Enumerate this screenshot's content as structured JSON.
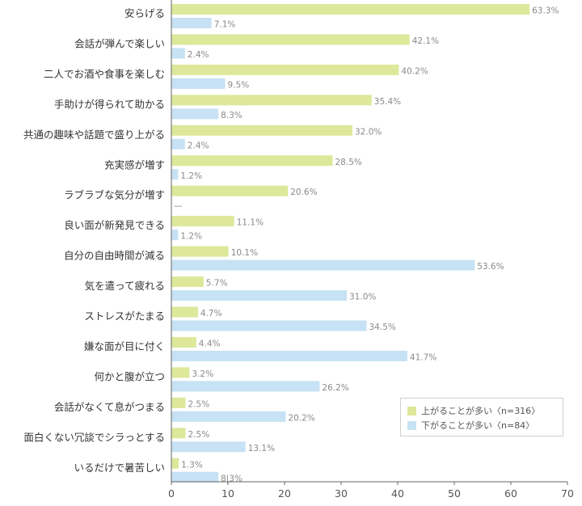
{
  "chart_data": {
    "type": "bar",
    "orientation": "horizontal",
    "categories": [
      "安らげる",
      "会話が弾んで楽しい",
      "二人でお酒や食事を楽しむ",
      "手助けが得られて助かる",
      "共通の趣味や話題で盛り上がる",
      "充実感が増す",
      "ラブラブな気分が増す",
      "良い面が新発見できる",
      "自分の自由時間が減る",
      "気を遣って疲れる",
      "ストレスがたまる",
      "嫌な面が目に付く",
      "何かと腹が立つ",
      "会話がなくて息がつまる",
      "面白くない冗談でシラっとする",
      "いるだけで暑苦しい"
    ],
    "series": [
      {
        "name": "上がることが多い〈n=316〉",
        "color": "#dde89a",
        "values": [
          63.3,
          42.1,
          40.2,
          35.4,
          32.0,
          28.5,
          20.6,
          11.1,
          10.1,
          5.7,
          4.7,
          4.4,
          3.2,
          2.5,
          2.5,
          1.3
        ],
        "labels": [
          "63.3%",
          "42.1%",
          "40.2%",
          "35.4%",
          "32.0%",
          "28.5%",
          "20.6%",
          "11.1%",
          "10.1%",
          "5.7%",
          "4.7%",
          "4.4%",
          "3.2%",
          "2.5%",
          "2.5%",
          "1.3%"
        ]
      },
      {
        "name": "下がることが多い〈n=84〉",
        "color": "#c6e2f4",
        "values": [
          7.1,
          2.4,
          9.5,
          8.3,
          2.4,
          1.2,
          0,
          1.2,
          53.6,
          31.0,
          34.5,
          41.7,
          26.2,
          20.2,
          13.1,
          8.3
        ],
        "labels": [
          "7.1%",
          "2.4%",
          "9.5%",
          "8.3%",
          "2.4%",
          "1.2%",
          "—",
          "1.2%",
          "53.6%",
          "31.0%",
          "34.5%",
          "41.7%",
          "26.2%",
          "20.2%",
          "13.1%",
          "8|3%"
        ]
      }
    ],
    "xlim": [
      0,
      70
    ],
    "xticks": [
      "0",
      "10",
      "20",
      "30",
      "40",
      "50",
      "60",
      "70"
    ],
    "grid": false,
    "legend_position": "bottom-right"
  }
}
